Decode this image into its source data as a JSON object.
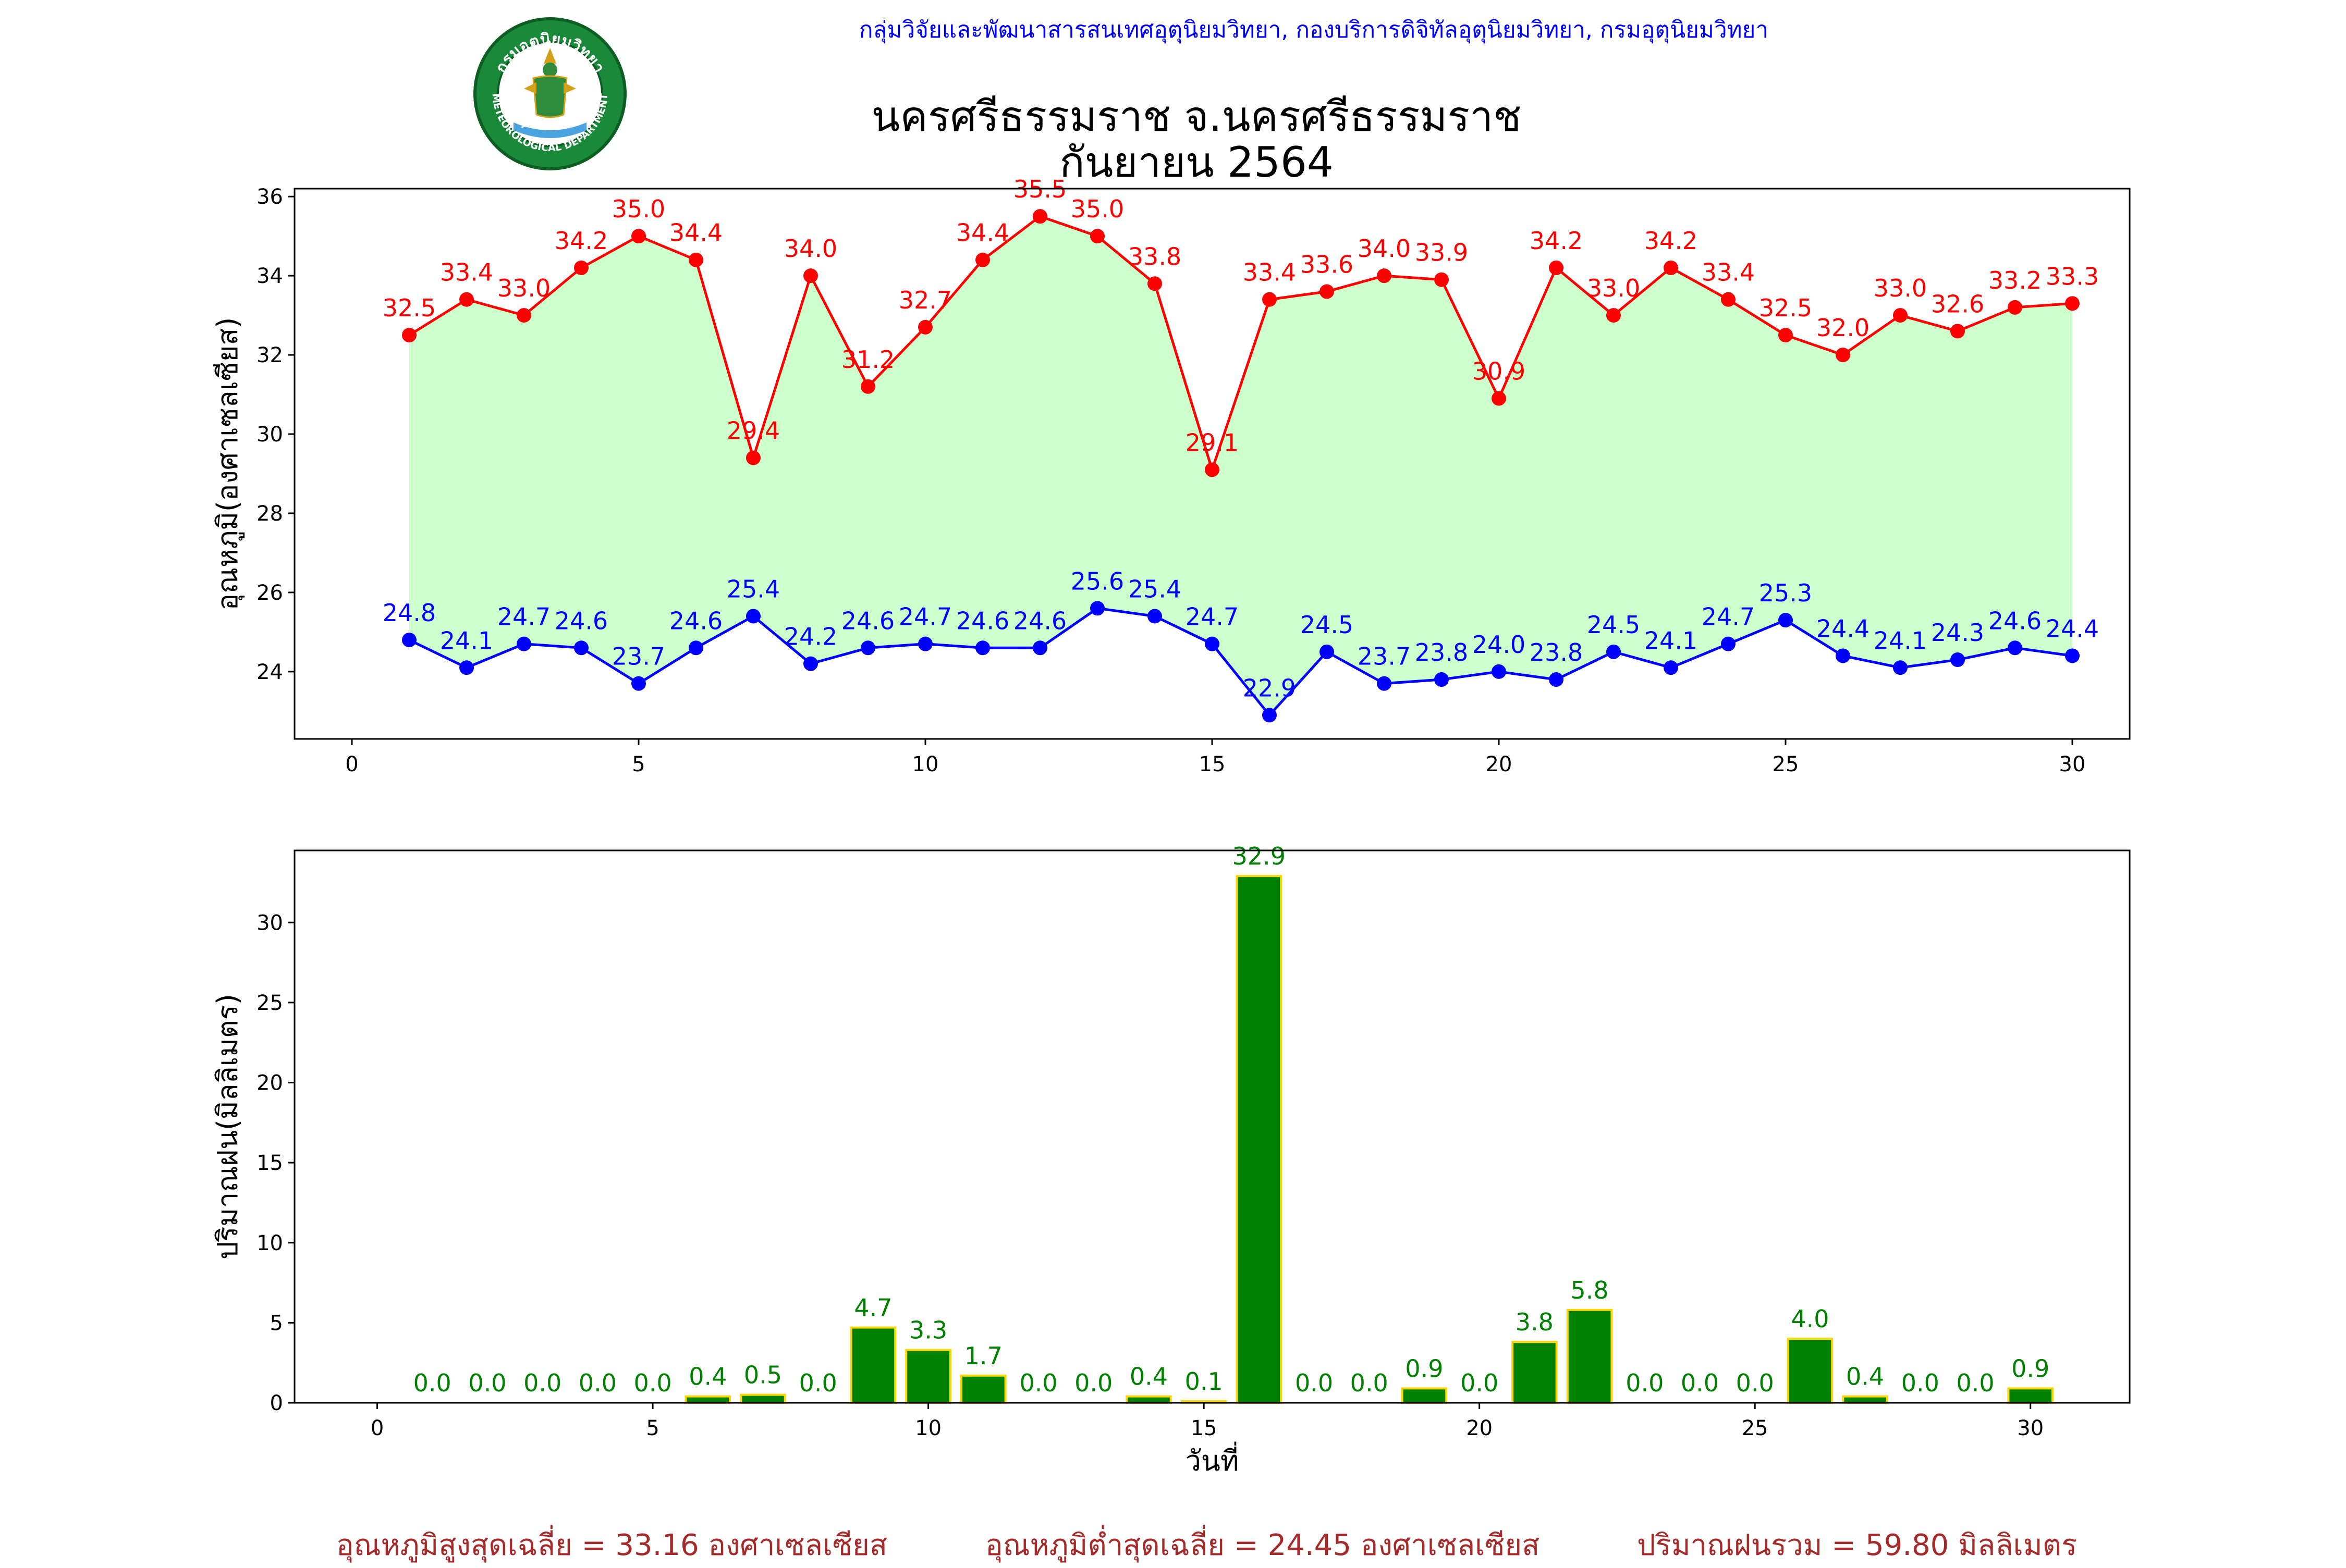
{
  "header": {
    "agency": "กลุ่มวิจัยและพัฒนาสารสนเทศอุตุนิยมวิทยา, กองบริการดิจิทัลอุตุนิยมวิทยา, กรมอุตุนิยมวิทยา",
    "title_station": "นครศรีธรรมราช จ.นครศรีธรรมราช",
    "title_period": "กันยายน 2564",
    "logo_text_top": "กรมอุตุนิยมวิทยา",
    "logo_text_bottom": "METEOROLOGICAL DEPARTMENT"
  },
  "footer": {
    "avg_max": "อุณหภูมิสูงสุดเฉลี่ย = 33.16 องศาเซลเซียส",
    "avg_min": "อุณหภูมิต่ำสุดเฉลี่ย = 24.45 องศาเซลเซียส",
    "total_rain": "ปริมาณฝนรวม = 59.80 มิลลิเมตร"
  },
  "colors": {
    "max_line": "#ff0000",
    "min_line": "#0000ff",
    "fill": "#ccffcc",
    "bar": "#008000",
    "bar_edge": "#ffd700",
    "rain_label": "#008000",
    "footer_text": "#a52a2a",
    "header_text": "#0000ff"
  },
  "chart_data": [
    {
      "type": "line",
      "ylabel": "อุณหภูมิ(องศาเซลเซียส)",
      "xlabel": "",
      "xlim": [
        -1,
        31
      ],
      "ylim": [
        22.3,
        36.2
      ],
      "xticks": [
        0,
        5,
        10,
        15,
        20,
        25,
        30
      ],
      "yticks": [
        24,
        26,
        28,
        30,
        32,
        34,
        36
      ],
      "fill_between": true,
      "x": [
        1,
        2,
        3,
        4,
        5,
        6,
        7,
        8,
        9,
        10,
        11,
        12,
        13,
        14,
        15,
        16,
        17,
        18,
        19,
        20,
        21,
        22,
        23,
        24,
        25,
        26,
        27,
        28,
        29,
        30
      ],
      "series": [
        {
          "color": "#ff0000",
          "values": [
            32.5,
            33.4,
            33.0,
            34.2,
            35.0,
            34.4,
            29.4,
            34.0,
            31.2,
            32.7,
            34.4,
            35.5,
            35.0,
            33.8,
            29.1,
            33.4,
            33.6,
            34.0,
            33.9,
            30.9,
            34.2,
            33.0,
            34.2,
            33.4,
            32.5,
            32.0,
            33.0,
            32.6,
            33.2,
            33.3
          ],
          "labels": [
            "32.5",
            "33.4",
            "33.0",
            "34.2",
            "35.0",
            "34.4",
            "29.4",
            "34.0",
            "31.2",
            "32.7",
            "34.4",
            "35.5",
            "35.0",
            "33.8",
            "29.1",
            "33.4",
            "33.6",
            "34.0",
            "33.9",
            "30.9",
            "34.2",
            "33.0",
            "34.2",
            "33.4",
            "32.5",
            "32.0",
            "33.0",
            "32.6",
            "33.2",
            "33.3"
          ]
        },
        {
          "color": "#0000ff",
          "values": [
            24.8,
            24.1,
            24.7,
            24.6,
            23.7,
            24.6,
            25.4,
            24.2,
            24.6,
            24.7,
            24.6,
            24.6,
            25.6,
            25.4,
            24.7,
            22.9,
            24.5,
            23.7,
            23.8,
            24.0,
            23.8,
            24.5,
            24.1,
            24.7,
            25.3,
            24.4,
            24.1,
            24.3,
            24.6,
            24.4
          ],
          "labels": [
            "24.8",
            "24.1",
            "24.7",
            "24.6",
            "23.7",
            "24.6",
            "25.4",
            "24.2",
            "24.6",
            "24.7",
            "24.6",
            "24.6",
            "25.6",
            "25.4",
            "24.7",
            "22.9",
            "24.5",
            "23.7",
            "23.8",
            "24.0",
            "23.8",
            "24.5",
            "24.1",
            "24.7",
            "25.3",
            "24.4",
            "24.1",
            "24.3",
            "24.6",
            "24.4"
          ]
        }
      ]
    },
    {
      "type": "bar",
      "xlabel": "วันที่",
      "ylabel": "ปริมาณฝน(มิลลิเมตร)",
      "xlim": [
        -1.5,
        31.8
      ],
      "ylim": [
        0,
        34.5
      ],
      "xticks": [
        0,
        5,
        10,
        15,
        20,
        25,
        30
      ],
      "yticks": [
        0,
        5,
        10,
        15,
        20,
        25,
        30
      ],
      "x": [
        1,
        2,
        3,
        4,
        5,
        6,
        7,
        8,
        9,
        10,
        11,
        12,
        13,
        14,
        15,
        16,
        17,
        18,
        19,
        20,
        21,
        22,
        23,
        24,
        25,
        26,
        27,
        28,
        29,
        30
      ],
      "values": [
        0.0,
        0.0,
        0.0,
        0.0,
        0.0,
        0.4,
        0.5,
        0.0,
        4.7,
        3.3,
        1.7,
        0.0,
        0.0,
        0.4,
        0.1,
        32.9,
        0.0,
        0.0,
        0.9,
        0.0,
        3.8,
        5.8,
        0.0,
        0.0,
        0.0,
        4.0,
        0.4,
        0.0,
        0.0,
        0.9
      ],
      "labels": [
        "0.0",
        "0.0",
        "0.0",
        "0.0",
        "0.0",
        "0.4",
        "0.5",
        "0.0",
        "4.7",
        "3.3",
        "1.7",
        "0.0",
        "0.0",
        "0.4",
        "0.1",
        "32.9",
        "0.0",
        "0.0",
        "0.9",
        "0.0",
        "3.8",
        "5.8",
        "0.0",
        "0.0",
        "0.0",
        "4.0",
        "0.4",
        "0.0",
        "0.0",
        "0.9"
      ]
    }
  ]
}
